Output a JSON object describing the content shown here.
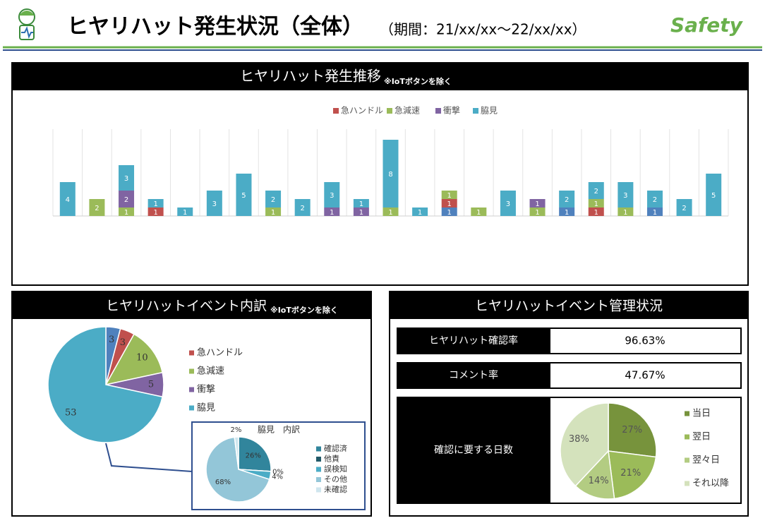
{
  "header": {
    "title": "ヒヤリハット発生状況（全体）",
    "period": "（期間：21/xx/xx～22/xx/xx）",
    "brand": "Safety"
  },
  "chart_data": [
    {
      "type": "bar",
      "stacked": true,
      "title": "ヒヤリハット発生推移",
      "note": "※IoTボタンを除く",
      "grid": true,
      "categories": [
        null,
        null,
        null,
        null,
        null,
        null,
        null,
        null,
        null,
        null,
        null,
        null,
        null,
        null,
        null,
        null,
        null,
        null,
        null,
        null,
        null,
        null,
        null
      ],
      "ylim": [
        0,
        10
      ],
      "series": [
        {
          "color": "#4f81bd",
          "values": [
            null,
            null,
            null,
            null,
            null,
            null,
            null,
            null,
            null,
            null,
            null,
            null,
            null,
            1,
            null,
            null,
            null,
            1,
            null,
            null,
            1,
            null,
            null
          ]
        },
        {
          "name": "急ハンドル",
          "color": "#c0504d",
          "values": [
            null,
            null,
            null,
            1,
            null,
            null,
            null,
            null,
            null,
            null,
            null,
            null,
            null,
            1,
            null,
            null,
            null,
            null,
            1,
            null,
            null,
            null,
            null
          ]
        },
        {
          "name": "急減速",
          "color": "#9bbb59",
          "values": [
            null,
            2,
            1,
            null,
            null,
            null,
            null,
            1,
            null,
            null,
            null,
            1,
            null,
            1,
            1,
            null,
            1,
            null,
            1,
            1,
            null,
            null,
            null
          ]
        },
        {
          "name": "衝撃",
          "color": "#8064a2",
          "values": [
            null,
            null,
            2,
            null,
            null,
            null,
            null,
            null,
            null,
            1,
            1,
            null,
            null,
            null,
            null,
            null,
            1,
            null,
            null,
            null,
            null,
            null,
            null
          ]
        },
        {
          "name": "脇見",
          "color": "#4bacc6",
          "values": [
            4,
            null,
            3,
            1,
            1,
            3,
            5,
            2,
            2,
            3,
            1,
            8,
            1,
            null,
            null,
            3,
            null,
            2,
            2,
            3,
            2,
            2,
            5
          ]
        }
      ]
    },
    {
      "type": "pie",
      "title": "ヒヤリハットイベント内訳",
      "note": "※IoTボタンを除く",
      "categories": [
        null,
        "急ハンドル",
        "急減速",
        "衝撃",
        "脇見"
      ],
      "values": [
        3,
        3,
        10,
        5,
        53
      ],
      "colors": [
        "#4f81bd",
        "#c0504d",
        "#9bbb59",
        "#8064a2",
        "#4bacc6"
      ]
    },
    {
      "type": "pie",
      "title": "脇見　内訳",
      "categories": [
        "確認済",
        "他責",
        "誤検知",
        "その他",
        "未確認"
      ],
      "values": [
        26,
        0,
        4,
        68,
        2
      ],
      "value_labels": [
        "26%",
        "0%",
        "4%",
        "68%",
        "2%"
      ],
      "colors": [
        "#31859c",
        "#215968",
        "#4bacc6",
        "#93c6d8",
        "#cfe6ee"
      ]
    },
    {
      "type": "pie",
      "categories": [
        "当日",
        "翌日",
        "翌々日",
        "それ以降"
      ],
      "values": [
        27,
        21,
        14,
        38
      ],
      "value_labels": [
        "27%",
        "21%",
        "14%",
        "38%"
      ],
      "colors": [
        "#77933c",
        "#9bbb59",
        "#b3cc82",
        "#d4e2bc"
      ]
    }
  ],
  "management": {
    "title": "ヒヤリハットイベント管理状況",
    "kpis": [
      {
        "label": "ヒヤリハット確認率",
        "value": "96.63%"
      },
      {
        "label": "コメント率",
        "value": "47.67%"
      }
    ],
    "days_label": "確認に要する日数"
  }
}
